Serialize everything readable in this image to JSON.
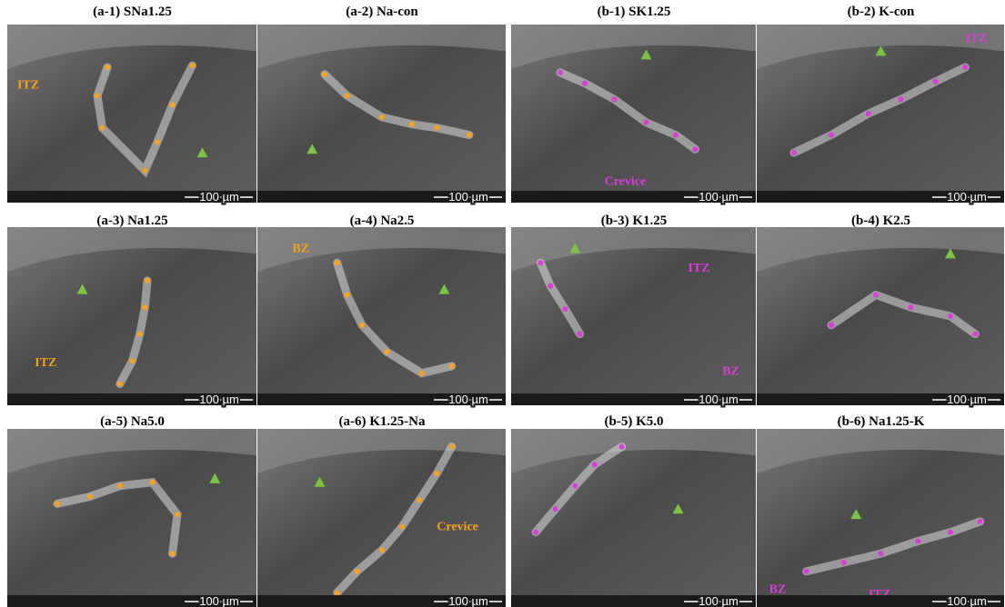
{
  "panels": [
    {
      "title": "(a-1) SNa1.25",
      "annotations": [
        "ITZ"
      ]
    },
    {
      "title": "(a-2) Na-con",
      "annotations": []
    },
    {
      "title": "(b-1) SK1.25",
      "annotations": [
        "Crevice"
      ]
    },
    {
      "title": "(b-2) K-con",
      "annotations": [
        "ITZ"
      ]
    },
    {
      "title": "(a-3) Na1.25",
      "annotations": [
        "ITZ"
      ]
    },
    {
      "title": "(a-4) Na2.5",
      "annotations": [
        "BZ"
      ]
    },
    {
      "title": "(b-3) K1.25",
      "annotations": [
        "ITZ",
        "BZ"
      ]
    },
    {
      "title": "(b-4) K2.5",
      "annotations": []
    },
    {
      "title": "(a-5) Na5.0",
      "annotations": []
    },
    {
      "title": "(a-6) K1.25-Na",
      "annotations": [
        "Crevice"
      ]
    },
    {
      "title": "(b-5) K5.0",
      "annotations": []
    },
    {
      "title": "(b-6) Na1.25-K",
      "annotations": [
        "BZ",
        "ITZ"
      ]
    }
  ],
  "scale_bar": "100 µm"
}
